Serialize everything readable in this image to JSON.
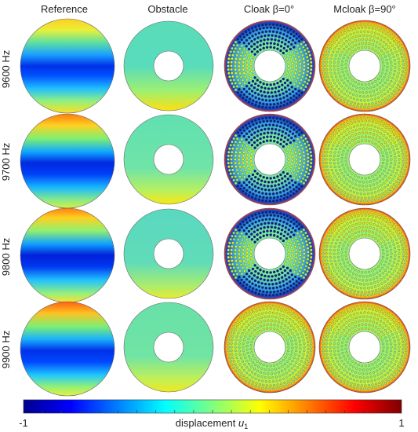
{
  "columns": [
    "Reference",
    "Obstacle",
    "Cloak β=0°",
    "Mcloak β=90°"
  ],
  "rows": [
    "9600 Hz",
    "9700 Hz",
    "9800 Hz",
    "9900 Hz"
  ],
  "colorbar": {
    "min_label": "-1",
    "max_label": "1",
    "label_text": "displacement ",
    "label_symbol": "u",
    "label_subscript": "1",
    "min": -1,
    "max": 1,
    "colormap": "jet"
  },
  "colors": {
    "ring_fill": "#6fe3a0",
    "outline": "#555555",
    "background": "#ffffff"
  }
}
